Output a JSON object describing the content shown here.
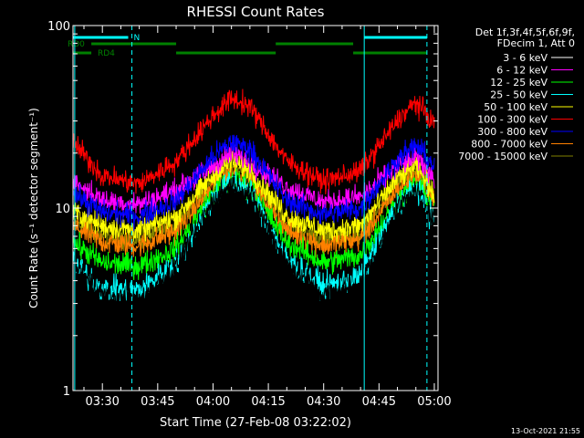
{
  "chart_data": {
    "type": "line",
    "title": "RHESSI Count Rates",
    "xlabel": "Start Time (27-Feb-08 03:22:02)",
    "ylabel": "Count Rate (s⁻¹ detector segment⁻¹)",
    "yscale": "log",
    "ylim": [
      1,
      100
    ],
    "xlim": [
      "03:22:02",
      "05:01:00"
    ],
    "xticks": [
      "03:30",
      "03:45",
      "04:00",
      "04:15",
      "04:30",
      "04:45",
      "05:00"
    ],
    "yticks": [
      1,
      10,
      100
    ],
    "grid": false,
    "legend_position": "right",
    "legend_header": [
      "Det 1f,3f,4f,5f,6f,9f,",
      "FDecim 1, Att 0"
    ],
    "series": [
      {
        "name": "3 - 6 keV",
        "color": "#000000",
        "points": [
          [
            "03:22",
            5.0
          ],
          [
            "03:30",
            3.3
          ],
          [
            "03:40",
            3.1
          ],
          [
            "03:50",
            4.8
          ],
          [
            "04:00",
            11.0
          ],
          [
            "04:05",
            13.5
          ],
          [
            "04:10",
            12.0
          ],
          [
            "04:20",
            5.0
          ],
          [
            "04:30",
            3.3
          ],
          [
            "04:40",
            3.8
          ],
          [
            "04:50",
            10.0
          ],
          [
            "04:55",
            12.5
          ],
          [
            "05:00",
            9.0
          ]
        ]
      },
      {
        "name": "6 - 12 keV",
        "color": "#ff00ff",
        "points": [
          [
            "03:22",
            14.0
          ],
          [
            "03:30",
            11.0
          ],
          [
            "03:40",
            10.5
          ],
          [
            "03:50",
            12.5
          ],
          [
            "04:00",
            17.0
          ],
          [
            "04:05",
            20.0
          ],
          [
            "04:10",
            18.0
          ],
          [
            "04:20",
            13.0
          ],
          [
            "04:30",
            10.8
          ],
          [
            "04:40",
            11.5
          ],
          [
            "04:50",
            17.0
          ],
          [
            "04:55",
            19.0
          ],
          [
            "05:00",
            15.0
          ]
        ]
      },
      {
        "name": "12 - 25 keV",
        "color": "#00ff00",
        "points": [
          [
            "03:22",
            6.5
          ],
          [
            "03:30",
            5.0
          ],
          [
            "03:40",
            4.8
          ],
          [
            "03:50",
            6.0
          ],
          [
            "04:00",
            12.0
          ],
          [
            "04:05",
            14.5
          ],
          [
            "04:10",
            13.0
          ],
          [
            "04:20",
            6.5
          ],
          [
            "04:30",
            5.0
          ],
          [
            "04:40",
            5.5
          ],
          [
            "04:50",
            11.0
          ],
          [
            "04:55",
            13.5
          ],
          [
            "05:00",
            10.0
          ]
        ]
      },
      {
        "name": "25 - 50 keV",
        "color": "#00ffff",
        "points": [
          [
            "03:22",
            5.0
          ],
          [
            "03:30",
            3.6
          ],
          [
            "03:40",
            3.5
          ],
          [
            "03:50",
            5.0
          ],
          [
            "04:00",
            11.5
          ],
          [
            "04:05",
            14.0
          ],
          [
            "04:10",
            12.5
          ],
          [
            "04:20",
            5.2
          ],
          [
            "04:30",
            3.7
          ],
          [
            "04:40",
            4.2
          ],
          [
            "04:50",
            10.5
          ],
          [
            "04:55",
            13.0
          ],
          [
            "05:00",
            8.5
          ]
        ]
      },
      {
        "name": "50 - 100 keV",
        "color": "#ffff00",
        "points": [
          [
            "03:22",
            9.5
          ],
          [
            "03:30",
            8.0
          ],
          [
            "03:40",
            7.5
          ],
          [
            "03:50",
            9.0
          ],
          [
            "04:00",
            15.0
          ],
          [
            "04:05",
            18.0
          ],
          [
            "04:10",
            16.0
          ],
          [
            "04:20",
            9.0
          ],
          [
            "04:30",
            7.5
          ],
          [
            "04:40",
            8.0
          ],
          [
            "04:50",
            14.5
          ],
          [
            "04:55",
            17.0
          ],
          [
            "05:00",
            12.0
          ]
        ]
      },
      {
        "name": "100 - 300 keV",
        "color": "#ff0000",
        "points": [
          [
            "03:22",
            23.0
          ],
          [
            "03:30",
            15.0
          ],
          [
            "03:40",
            13.5
          ],
          [
            "03:50",
            18.0
          ],
          [
            "04:00",
            32.0
          ],
          [
            "04:05",
            40.0
          ],
          [
            "04:10",
            36.0
          ],
          [
            "04:20",
            18.0
          ],
          [
            "04:30",
            14.0
          ],
          [
            "04:40",
            16.0
          ],
          [
            "04:50",
            30.0
          ],
          [
            "04:55",
            38.0
          ],
          [
            "05:00",
            29.0
          ]
        ]
      },
      {
        "name": "300 - 800 keV",
        "color": "#0000ff",
        "points": [
          [
            "03:22",
            12.0
          ],
          [
            "03:30",
            9.5
          ],
          [
            "03:40",
            9.0
          ],
          [
            "03:50",
            11.0
          ],
          [
            "04:00",
            19.0
          ],
          [
            "04:05",
            23.0
          ],
          [
            "04:10",
            21.0
          ],
          [
            "04:20",
            11.0
          ],
          [
            "04:30",
            9.2
          ],
          [
            "04:40",
            10.0
          ],
          [
            "04:50",
            18.5
          ],
          [
            "04:55",
            22.0
          ],
          [
            "05:00",
            17.0
          ]
        ]
      },
      {
        "name": "800 - 7000 keV",
        "color": "#ff8000",
        "points": [
          [
            "03:22",
            8.0
          ],
          [
            "03:30",
            6.5
          ],
          [
            "03:40",
            6.2
          ],
          [
            "03:50",
            7.5
          ],
          [
            "04:00",
            13.0
          ],
          [
            "04:05",
            16.0
          ],
          [
            "04:10",
            14.0
          ],
          [
            "04:20",
            7.5
          ],
          [
            "04:30",
            6.2
          ],
          [
            "04:40",
            6.8
          ],
          [
            "04:50",
            12.5
          ],
          [
            "04:55",
            15.0
          ],
          [
            "05:00",
            11.0
          ]
        ]
      },
      {
        "name": "7000 - 15000 keV",
        "color": "#808000",
        "points": [
          [
            "03:22",
            8.5
          ],
          [
            "03:30",
            7.0
          ],
          [
            "03:40",
            6.8
          ],
          [
            "03:50",
            8.0
          ],
          [
            "04:00",
            14.0
          ],
          [
            "04:05",
            17.0
          ],
          [
            "04:10",
            15.0
          ],
          [
            "04:20",
            8.0
          ],
          [
            "04:30",
            6.8
          ],
          [
            "04:40",
            7.2
          ],
          [
            "04:50",
            13.5
          ],
          [
            "04:55",
            16.0
          ],
          [
            "05:00",
            11.5
          ]
        ]
      }
    ],
    "annotations": {
      "attenuator_bars": [
        {
          "label": "N",
          "color": "#00ffff",
          "segments": [
            [
              "03:22",
              "03:37"
            ],
            [
              "04:41",
              "04:58"
            ]
          ]
        }
      ],
      "rate_bars": [
        {
          "label": "RD0",
          "color": "#008000",
          "segments": [
            [
              "03:27",
              "03:50"
            ],
            [
              "04:17",
              "04:38"
            ]
          ]
        },
        {
          "label": "RD4",
          "color": "#008000",
          "segments": [
            [
              "03:22",
              "03:27"
            ],
            [
              "03:50",
              "04:17"
            ],
            [
              "04:38",
              "04:58"
            ]
          ]
        }
      ],
      "vlines": [
        {
          "time": "03:22:30",
          "color": "#00ffff",
          "style": "solid"
        },
        {
          "time": "03:38",
          "color": "#00ffff",
          "style": "dashed"
        },
        {
          "time": "04:41",
          "color": "#00ffff",
          "style": "solid"
        },
        {
          "time": "04:58",
          "color": "#00ffff",
          "style": "dashed"
        }
      ]
    },
    "footer_timestamp": "13-Oct-2021 21:55"
  }
}
